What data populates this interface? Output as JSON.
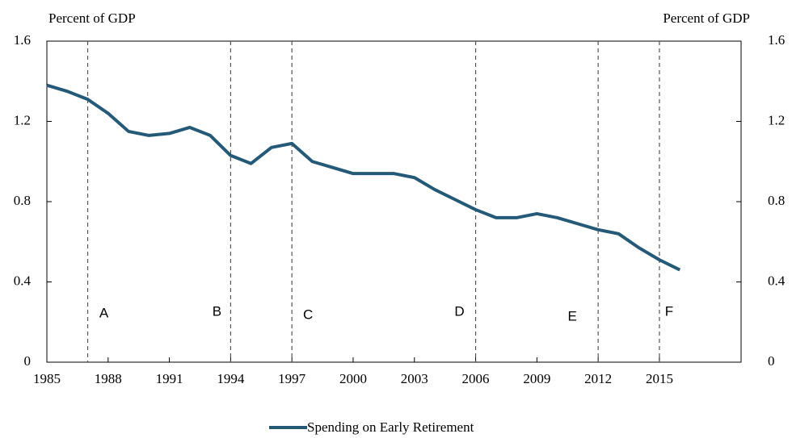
{
  "chart_data": {
    "type": "line",
    "ylabel": "Percent of GDP",
    "y2label": "Percent of GDP",
    "x": [
      1985,
      1986,
      1987,
      1988,
      1989,
      1990,
      1991,
      1992,
      1993,
      1994,
      1995,
      1996,
      1997,
      1998,
      1999,
      2000,
      2001,
      2002,
      2003,
      2004,
      2005,
      2006,
      2007,
      2008,
      2009,
      2010,
      2011,
      2012,
      2013,
      2014,
      2015,
      2016
    ],
    "series": [
      {
        "name": "Spending on Early Retirement",
        "color": "#245a77",
        "values": [
          1.38,
          1.35,
          1.31,
          1.24,
          1.15,
          1.13,
          1.14,
          1.17,
          1.13,
          1.03,
          0.99,
          1.07,
          1.09,
          1.0,
          0.97,
          0.94,
          0.94,
          0.94,
          0.92,
          0.86,
          0.81,
          0.76,
          0.72,
          0.72,
          0.74,
          0.72,
          0.69,
          0.66,
          0.64,
          0.57,
          0.51,
          0.46
        ]
      }
    ],
    "xlim": [
      1985,
      2019
    ],
    "xticks": [
      1985,
      1988,
      1991,
      1994,
      1997,
      2000,
      2003,
      2006,
      2009,
      2012,
      2015
    ],
    "ylim": [
      0,
      1.6
    ],
    "yticks": [
      0,
      0.4,
      0.8,
      1.2,
      1.6
    ],
    "y2lim": [
      0,
      1.6
    ],
    "y2ticks": [
      0,
      0.4,
      0.8,
      1.2,
      1.6
    ],
    "events": [
      {
        "x": 1987,
        "label": "A"
      },
      {
        "x": 1994,
        "label": "B"
      },
      {
        "x": 1997,
        "label": "C"
      },
      {
        "x": 2006,
        "label": "D"
      },
      {
        "x": 2012,
        "label": "E"
      },
      {
        "x": 2015,
        "label": "F"
      }
    ],
    "legend": "bottom"
  }
}
